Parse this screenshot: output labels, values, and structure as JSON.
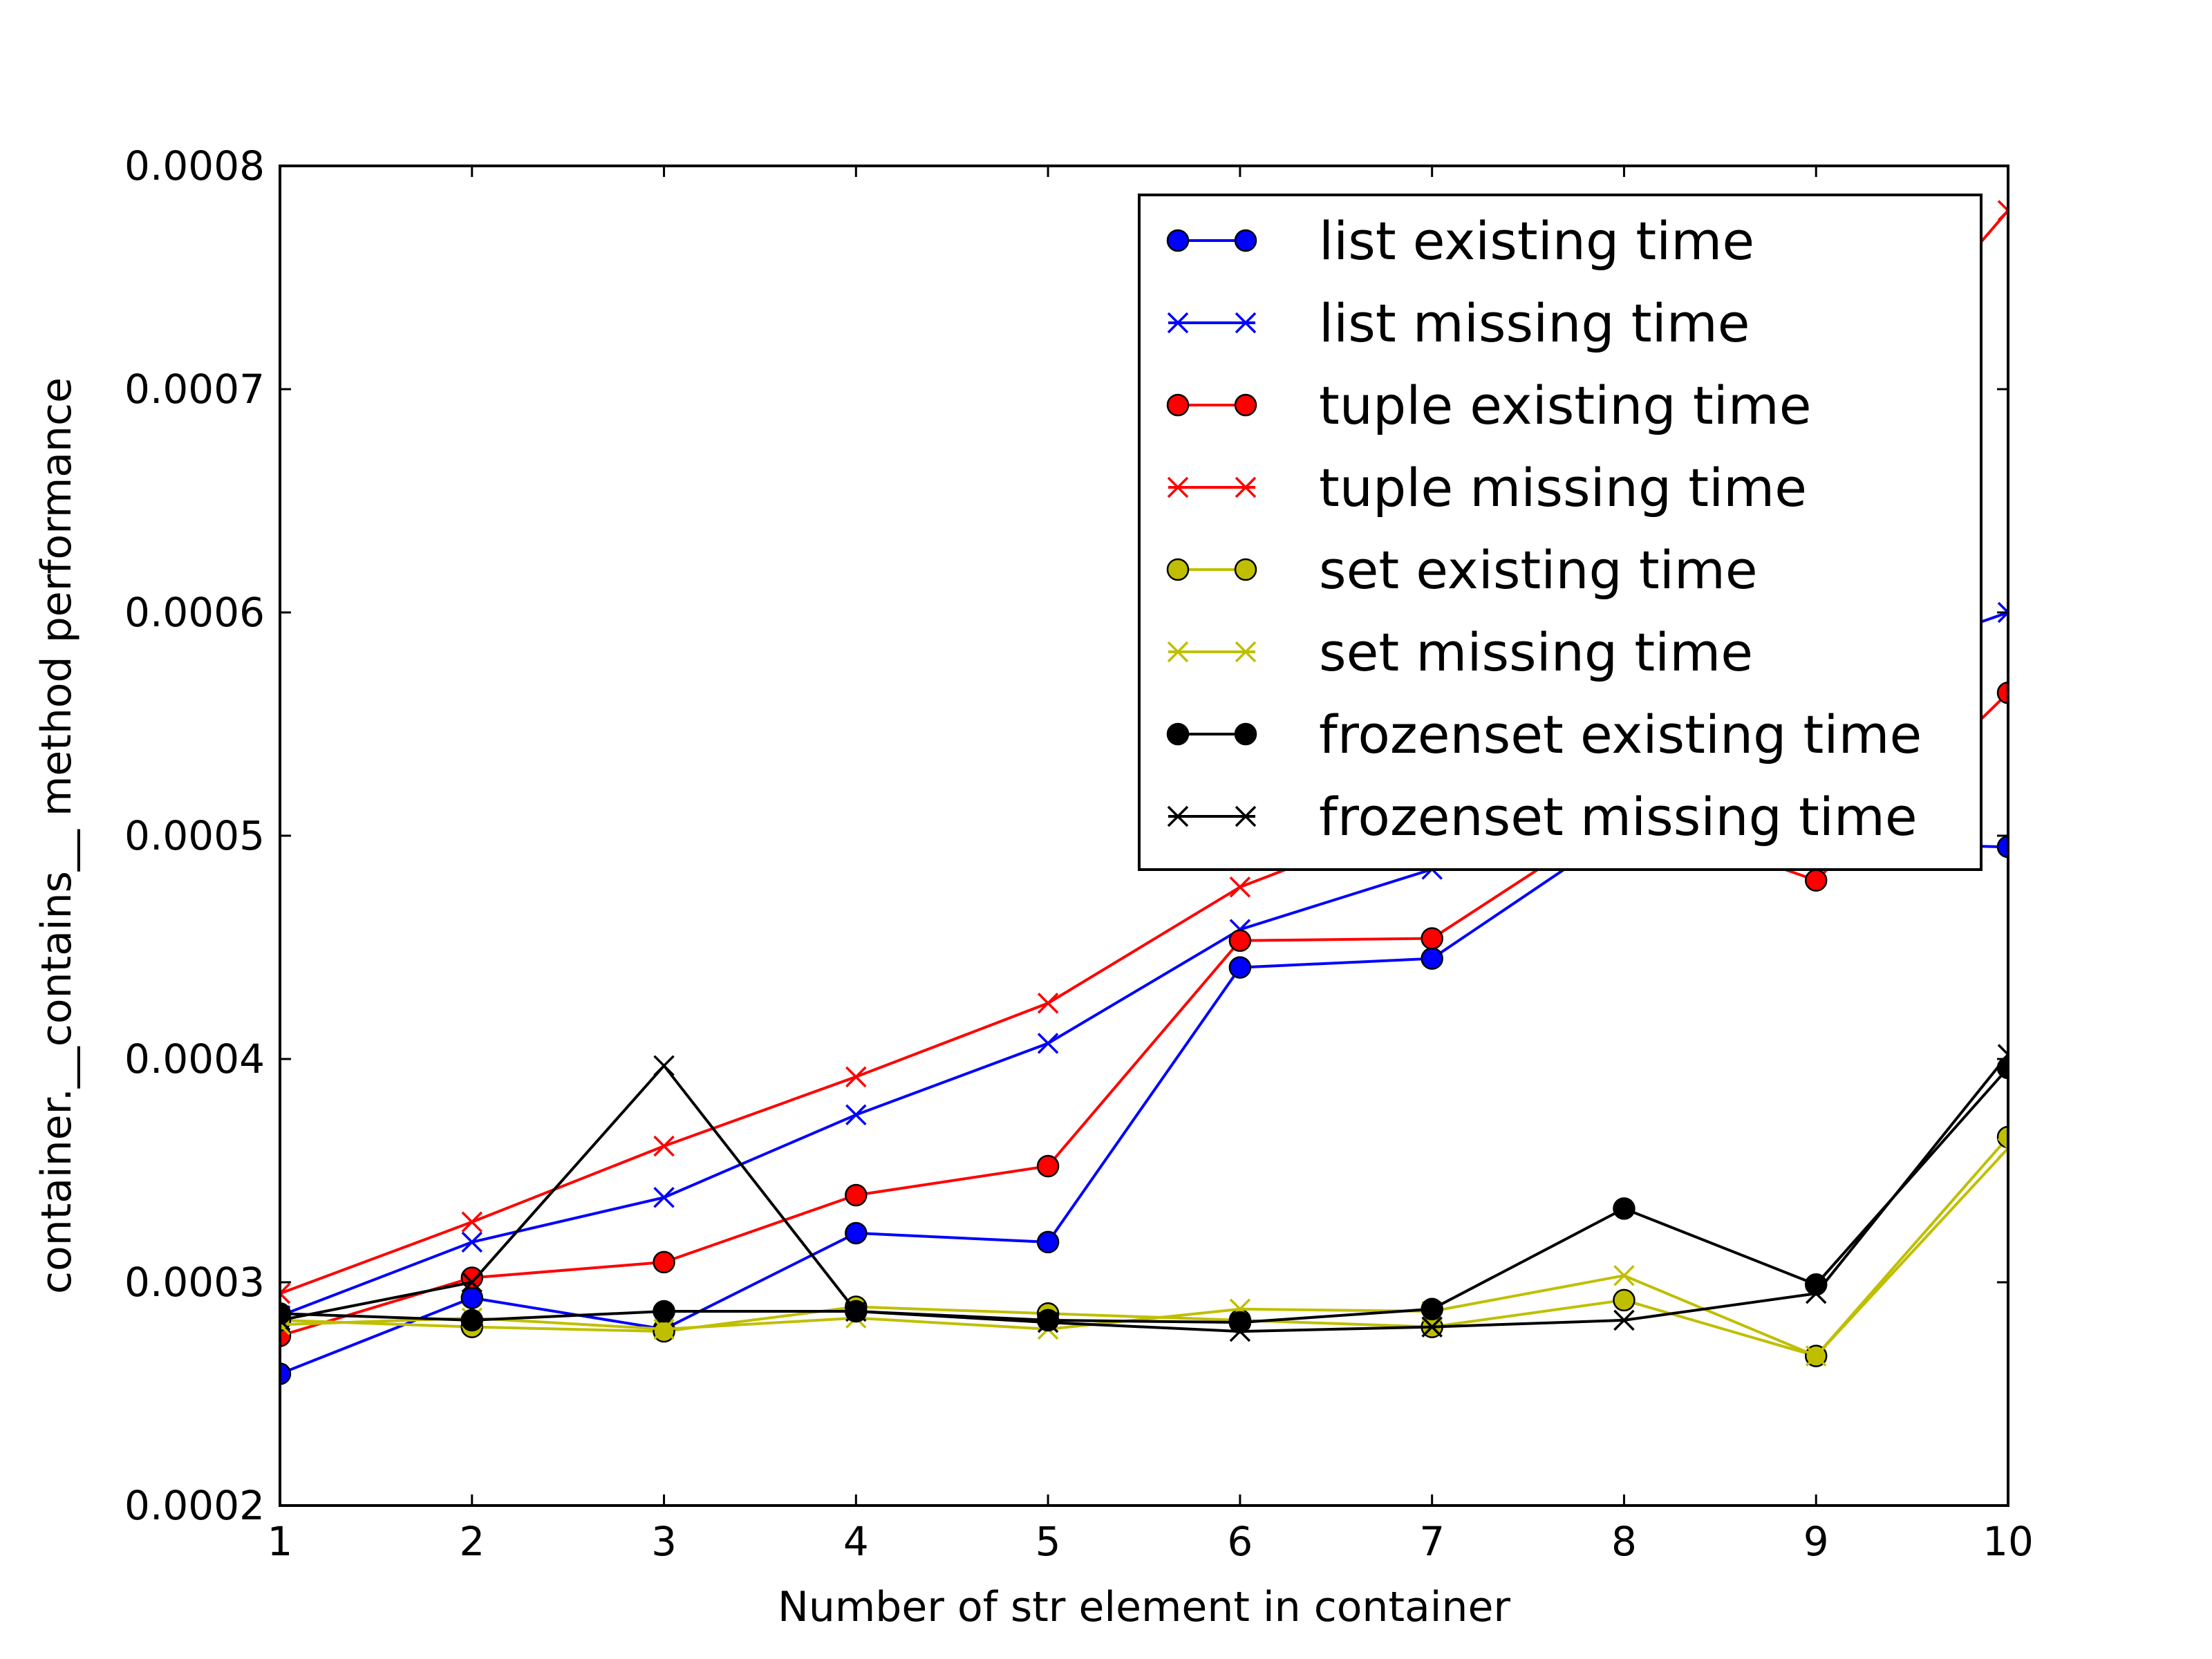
{
  "chart_data": {
    "type": "line",
    "xlabel": "Number of str element in container",
    "ylabel": "container.__contains__ method performance",
    "xlim": [
      1,
      10
    ],
    "ylim": [
      0.0002,
      0.0008
    ],
    "x_ticks": [
      "1",
      "2",
      "3",
      "4",
      "5",
      "6",
      "7",
      "8",
      "9",
      "10"
    ],
    "y_ticks": [
      "0.0002",
      "0.0003",
      "0.0004",
      "0.0005",
      "0.0006",
      "0.0007",
      "0.0008"
    ],
    "grid": false,
    "legend_position": "top-right",
    "x": [
      1,
      2,
      3,
      4,
      5,
      6,
      7,
      8,
      9,
      10
    ],
    "series": [
      {
        "name": "list existing time",
        "color": "#0000ff",
        "marker": "circle",
        "values": [
          0.000259,
          0.000293,
          0.000279,
          0.000322,
          0.000318,
          0.000441,
          0.000445,
          0.000503,
          0.000497,
          0.000495
        ]
      },
      {
        "name": "list missing time",
        "color": "#0000ff",
        "marker": "x",
        "values": [
          0.000285,
          0.000318,
          0.000338,
          0.000375,
          0.000407,
          0.000458,
          0.000485,
          0.00054,
          0.00057,
          0.0006
        ]
      },
      {
        "name": "tuple existing time",
        "color": "#ff0000",
        "marker": "circle",
        "values": [
          0.000276,
          0.000302,
          0.000309,
          0.000339,
          0.000352,
          0.000453,
          0.000454,
          0.00051,
          0.00048,
          0.000564
        ]
      },
      {
        "name": "tuple missing time",
        "color": "#ff0000",
        "marker": "x",
        "values": [
          0.000295,
          0.000327,
          0.000361,
          0.000392,
          0.000425,
          0.000477,
          0.00051,
          0.00056,
          0.00068,
          0.00078
        ]
      },
      {
        "name": "set existing time",
        "color": "#bfbf00",
        "marker": "circle",
        "values": [
          0.000283,
          0.00028,
          0.000278,
          0.000289,
          0.000286,
          0.000283,
          0.00028,
          0.000292,
          0.000267,
          0.000365
        ]
      },
      {
        "name": "set missing time",
        "color": "#bfbf00",
        "marker": "x",
        "values": [
          0.000281,
          0.000284,
          0.000279,
          0.000284,
          0.000279,
          0.000288,
          0.000287,
          0.000303,
          0.000267,
          0.00036
        ]
      },
      {
        "name": "frozenset existing time",
        "color": "#000000",
        "marker": "circle",
        "values": [
          0.000286,
          0.000283,
          0.000287,
          0.000287,
          0.000283,
          0.000282,
          0.000288,
          0.000333,
          0.000299,
          0.000396
        ]
      },
      {
        "name": "frozenset missing time",
        "color": "#000000",
        "marker": "x",
        "values": [
          0.000283,
          0.0003,
          0.000397,
          0.000287,
          0.000282,
          0.000278,
          0.00028,
          0.000283,
          0.000295,
          0.000402
        ]
      }
    ]
  }
}
